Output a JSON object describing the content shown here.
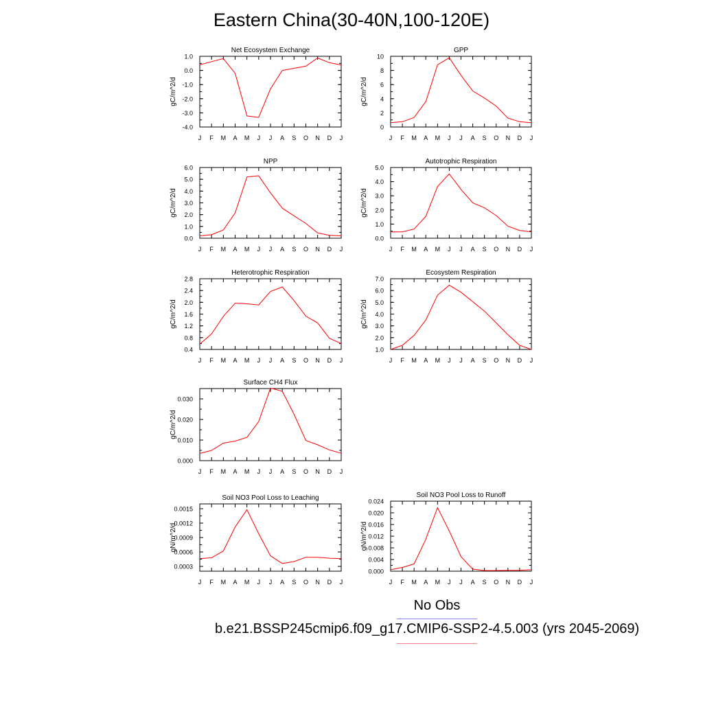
{
  "title": "Eastern China(30-40N,100-120E)",
  "legend": {
    "no_obs": "No Obs",
    "case_label": "b.e21.BSSP245cmip6.f09_g17.CMIP6-SSP2-4.5.003 (yrs 2045-2069)",
    "colors": {
      "model": "#ff0000",
      "obs": "#8080f0"
    }
  },
  "chart_data": [
    {
      "type": "line",
      "title": "Net Ecosystem Exchange",
      "ylabel": "gC/m^2/d",
      "x": [
        "J",
        "F",
        "M",
        "A",
        "M",
        "J",
        "J",
        "A",
        "S",
        "O",
        "N",
        "D",
        "J"
      ],
      "ylim": [
        -4.0,
        1.0
      ],
      "yticks": [
        "-4.0",
        "-3.0",
        "-2.0",
        "-1.0",
        "0.0",
        "1.0"
      ],
      "series": [
        {
          "values": [
            0.4,
            0.62,
            0.84,
            -0.2,
            -3.22,
            -3.32,
            -1.3,
            0.0,
            0.15,
            0.3,
            0.88,
            0.55,
            0.38
          ]
        }
      ]
    },
    {
      "type": "line",
      "title": "GPP",
      "ylabel": "gC/m^2/d",
      "x": [
        "J",
        "F",
        "M",
        "A",
        "M",
        "J",
        "J",
        "A",
        "S",
        "O",
        "N",
        "D",
        "J"
      ],
      "ylim": [
        0,
        10
      ],
      "yticks": [
        "0",
        "2",
        "4",
        "6",
        "8",
        "10"
      ],
      "series": [
        {
          "values": [
            0.6,
            0.75,
            1.35,
            3.6,
            8.8,
            9.8,
            7.3,
            5.1,
            4.1,
            2.95,
            1.25,
            0.75,
            0.6
          ]
        }
      ]
    },
    {
      "type": "line",
      "title": "NPP",
      "ylabel": "gC/m^2/d",
      "x": [
        "J",
        "F",
        "M",
        "A",
        "M",
        "J",
        "J",
        "A",
        "S",
        "O",
        "N",
        "D",
        "J"
      ],
      "ylim": [
        0.0,
        6.0
      ],
      "yticks": [
        "0.0",
        "1.0",
        "2.0",
        "3.0",
        "4.0",
        "5.0",
        "6.0"
      ],
      "series": [
        {
          "values": [
            0.2,
            0.3,
            0.7,
            2.15,
            5.2,
            5.3,
            3.85,
            2.55,
            1.9,
            1.25,
            0.45,
            0.25,
            0.2
          ]
        }
      ]
    },
    {
      "type": "line",
      "title": "Autotrophic Respiration",
      "ylabel": "gC/m^2/d",
      "x": [
        "J",
        "F",
        "M",
        "A",
        "M",
        "J",
        "J",
        "A",
        "S",
        "O",
        "N",
        "D",
        "J"
      ],
      "ylim": [
        0.0,
        5.0
      ],
      "yticks": [
        "0.0",
        "1.0",
        "2.0",
        "3.0",
        "4.0",
        "5.0"
      ],
      "series": [
        {
          "values": [
            0.45,
            0.45,
            0.65,
            1.55,
            3.65,
            4.55,
            3.45,
            2.5,
            2.15,
            1.6,
            0.85,
            0.55,
            0.45
          ]
        }
      ]
    },
    {
      "type": "line",
      "title": "Heterotrophic Respiration",
      "ylabel": "gC/m^2/d",
      "x": [
        "J",
        "F",
        "M",
        "A",
        "M",
        "J",
        "J",
        "A",
        "S",
        "O",
        "N",
        "D",
        "J"
      ],
      "ylim": [
        0.4,
        2.8
      ],
      "yticks": [
        "0.4",
        "0.8",
        "1.2",
        "1.6",
        "2.0",
        "2.4",
        "2.8"
      ],
      "series": [
        {
          "values": [
            0.58,
            0.93,
            1.52,
            1.97,
            1.95,
            1.91,
            2.37,
            2.52,
            2.06,
            1.53,
            1.3,
            0.78,
            0.6
          ]
        }
      ]
    },
    {
      "type": "line",
      "title": "Ecosystem Respiration",
      "ylabel": "gC/m^2/d",
      "x": [
        "J",
        "F",
        "M",
        "A",
        "M",
        "J",
        "J",
        "A",
        "S",
        "O",
        "N",
        "D",
        "J"
      ],
      "ylim": [
        1.0,
        7.0
      ],
      "yticks": [
        "1.0",
        "2.0",
        "3.0",
        "4.0",
        "5.0",
        "6.0",
        "7.0"
      ],
      "series": [
        {
          "values": [
            1.0,
            1.35,
            2.2,
            3.5,
            5.6,
            6.45,
            5.85,
            5.05,
            4.25,
            3.25,
            2.25,
            1.35,
            1.0
          ]
        }
      ]
    },
    {
      "type": "line",
      "title": "Surface CH4 Flux",
      "ylabel": "gC/m^2/d",
      "x": [
        "J",
        "F",
        "M",
        "A",
        "M",
        "J",
        "J",
        "A",
        "S",
        "O",
        "N",
        "D",
        "J"
      ],
      "ylim": [
        0.0,
        0.035
      ],
      "yticks": [
        "0.000",
        "0.010",
        "0.020",
        "0.030"
      ],
      "series": [
        {
          "values": [
            0.0035,
            0.005,
            0.0085,
            0.0095,
            0.0113,
            0.019,
            0.0352,
            0.0337,
            0.0225,
            0.0098,
            0.0077,
            0.0052,
            0.0036
          ]
        }
      ]
    },
    {
      "type": "line",
      "title": "Soil NO3 Pool Loss to Leaching",
      "ylabel": "gN/m^2/d",
      "x": [
        "J",
        "F",
        "M",
        "A",
        "M",
        "J",
        "J",
        "A",
        "S",
        "O",
        "N",
        "D",
        "J"
      ],
      "ylim": [
        0.0002,
        0.0016
      ],
      "yticks": [
        "0.0003",
        "0.0006",
        "0.0009",
        "0.0012",
        "0.0015"
      ],
      "series": [
        {
          "values": [
            0.00046,
            0.00048,
            0.00062,
            0.00112,
            0.00148,
            0.00098,
            0.00052,
            0.00036,
            0.0004,
            0.00049,
            0.00049,
            0.00047,
            0.00046
          ]
        }
      ]
    },
    {
      "type": "line",
      "title": "Soil NO3 Pool Loss to Runoff",
      "ylabel": "gN/m^2/d",
      "x": [
        "J",
        "F",
        "M",
        "A",
        "M",
        "J",
        "J",
        "A",
        "S",
        "O",
        "N",
        "D",
        "J"
      ],
      "ylim": [
        0.0,
        0.024
      ],
      "yticks": [
        "0.000",
        "0.004",
        "0.008",
        "0.012",
        "0.016",
        "0.020",
        "0.024"
      ],
      "series": [
        {
          "values": [
            0.0005,
            0.0013,
            0.0025,
            0.011,
            0.0218,
            0.0138,
            0.005,
            0.0007,
            0.0002,
            0.0002,
            0.0003,
            0.0003,
            0.0005
          ]
        }
      ]
    }
  ]
}
